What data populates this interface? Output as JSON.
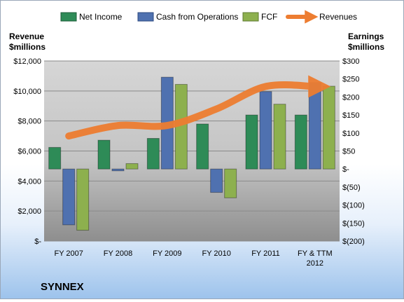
{
  "chart_data": {
    "type": "bar",
    "company": "SYNNEX",
    "categories": [
      "FY 2007",
      "FY 2008",
      "FY 2009",
      "FY 2010",
      "FY 2011",
      "FY & TTM 2012"
    ],
    "series": [
      {
        "name": "Net Income",
        "axis": "right",
        "color": "#2e8b57",
        "values": [
          60,
          80,
          85,
          125,
          150,
          150
        ]
      },
      {
        "name": "Cash from Operations",
        "axis": "right",
        "color": "#4f71b0",
        "values": [
          -155,
          -5,
          255,
          -65,
          215,
          240
        ]
      },
      {
        "name": "FCF",
        "axis": "right",
        "color": "#8db04e",
        "values": [
          -170,
          15,
          235,
          -80,
          180,
          230
        ]
      },
      {
        "name": "Revenues",
        "axis": "left",
        "type": "line",
        "color": "#ed7d31",
        "values": [
          7000,
          7700,
          7700,
          8800,
          10300,
          10300
        ]
      }
    ],
    "left_axis": {
      "label": "Revenue $millions",
      "label_lines": [
        "Revenue",
        "$millions"
      ],
      "range": [
        0,
        12000
      ],
      "ticks": [
        0,
        2000,
        4000,
        6000,
        8000,
        10000,
        12000
      ],
      "tick_labels": [
        "$-",
        "$2,000",
        "$4,000",
        "$6,000",
        "$8,000",
        "$10,000",
        "$12,000"
      ]
    },
    "right_axis": {
      "label": "Earnings $millions",
      "label_lines": [
        "Earnings",
        "$millions"
      ],
      "range": [
        -200,
        300
      ],
      "ticks": [
        -200,
        -150,
        -100,
        -50,
        0,
        50,
        100,
        150,
        200,
        250,
        300
      ],
      "tick_labels": [
        "$(200)",
        "$(150)",
        "$(100)",
        "$(50)",
        "$-",
        "$50",
        "$100",
        "$150",
        "$200",
        "$250",
        "$300"
      ]
    },
    "grid": true,
    "legend_position": "top"
  }
}
